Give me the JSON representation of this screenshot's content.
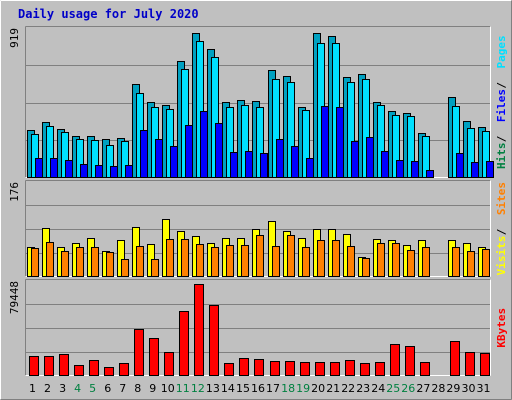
{
  "chart_data": {
    "type": "bar",
    "title": "Daily usage for July 2020",
    "categories": [
      "1",
      "2",
      "3",
      "4",
      "5",
      "6",
      "7",
      "8",
      "9",
      "10",
      "11",
      "12",
      "13",
      "14",
      "15",
      "16",
      "17",
      "18",
      "19",
      "20",
      "21",
      "22",
      "23",
      "24",
      "25",
      "26",
      "27",
      "28",
      "29",
      "30",
      "31"
    ],
    "weekend_days": [
      "4",
      "5",
      "11",
      "12",
      "18",
      "19",
      "25",
      "26"
    ],
    "weekend_color": "#008040",
    "weekday_color": "#000000",
    "panels": [
      {
        "id": "hits",
        "ymax_label": "919",
        "ylim": [
          0,
          919
        ],
        "series": [
          {
            "name": "Hits",
            "color": "#00a0c0",
            "values": [
              295,
              340,
              300,
              255,
              255,
              235,
              245,
              570,
              465,
              445,
              710,
              885,
              785,
              465,
              475,
              470,
              655,
              620,
              435,
              880,
              865,
              615,
              635,
              465,
              405,
              395,
              275,
              0,
              495,
              345,
              310
            ]
          },
          {
            "name": "Files",
            "color": "#00e0ff",
            "values": [
              265,
              315,
              280,
              235,
              230,
              200,
              225,
              520,
              435,
              420,
              665,
              835,
              735,
              430,
              445,
              435,
              605,
              585,
              415,
              820,
              820,
              585,
              600,
              445,
              385,
              380,
              255,
              0,
              440,
              305,
              285
            ]
          },
          {
            "name": "Pages",
            "color": "#0000ff",
            "values": [
              120,
              120,
              110,
              85,
              80,
              70,
              80,
              295,
              240,
              195,
              320,
              405,
              335,
              160,
              165,
              150,
              235,
              195,
              120,
              440,
              435,
              225,
              250,
              165,
              110,
              105,
              50,
              0,
              150,
              100,
              105
            ]
          }
        ],
        "legend": [
          {
            "label": "Hits",
            "color": "#008040"
          },
          {
            "label": "Files",
            "color": "#0000ff"
          },
          {
            "label": "Pages",
            "color": "#00e0ff"
          }
        ]
      },
      {
        "id": "visits",
        "ymax_label": "176",
        "ylim": [
          0,
          176
        ],
        "series": [
          {
            "name": "Visits",
            "color": "#ffff00",
            "values": [
              55,
              90,
              55,
              63,
              72,
              48,
              68,
              92,
              60,
              107,
              84,
              75,
              63,
              72,
              72,
              88,
              103,
              84,
              72,
              88,
              88,
              78,
              37,
              70,
              68,
              58,
              68,
              0,
              68,
              62,
              55
            ]
          },
          {
            "name": "Sites",
            "color": "#ff8000",
            "values": [
              53,
              65,
              48,
              55,
              55,
              45,
              33,
              57,
              33,
              70,
              70,
              60,
              55,
              58,
              58,
              77,
              57,
              77,
              55,
              68,
              68,
              56,
              35,
              62,
              63,
              50,
              55,
              0,
              55,
              48,
              52
            ]
          }
        ],
        "legend": [
          {
            "label": "Visits",
            "color": "#ffff00"
          },
          {
            "label": "Sites",
            "color": "#ff8000"
          }
        ]
      },
      {
        "id": "kbytes",
        "ymax_label": "79448",
        "ylim": [
          0,
          79448
        ],
        "series": [
          {
            "name": "KBytes",
            "color": "#ff0000",
            "values": [
              16900,
              16900,
              17800,
              8900,
              13300,
              7100,
              10700,
              39200,
              31100,
              19600,
              53400,
              76500,
              58700,
              10700,
              15100,
              14200,
              12500,
              12500,
              11600,
              11600,
              11600,
              13300,
              10700,
              11600,
              26700,
              24900,
              11600,
              0,
              29300,
              19600,
              18700
            ]
          }
        ],
        "legend": [
          {
            "label": "KBytes",
            "color": "#ff0000"
          }
        ]
      }
    ]
  }
}
